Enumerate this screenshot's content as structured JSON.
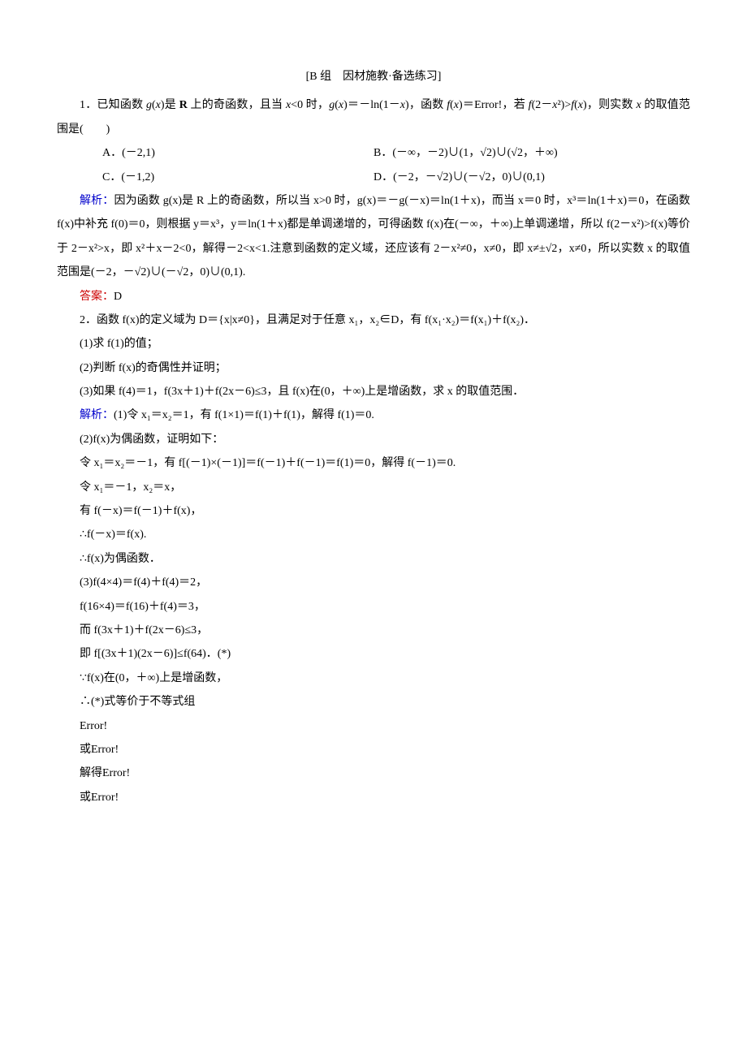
{
  "header": "[B 组　因材施教·备选练习]",
  "q1": {
    "stem_a": "1．已知函数 ",
    "stem_b": " 上的奇函数，且当 ",
    "stem_c": " 时，",
    "stem_d": "，函数 ",
    "stem_e": "Error!",
    "stem_f": "，若 ",
    "stem_g": "，则实数 ",
    "stem_h": " 的取值范围是",
    "stem_i": "(　　)",
    "optA": "A．(－2,1)",
    "optB": "B．(－∞，－2)∪(1，√2)∪(√2，＋∞)",
    "optC": "C．(－1,2)",
    "optD": "D．(－2，－√2)∪(－√2，0)∪(0,1)",
    "ans_label": "解析：",
    "ans1": "因为函数 g(x)是 R 上的奇函数，所以当 x>0 时，g(x)＝－g(－x)＝ln(1＋x)，而当 x＝0 时，x³＝ln(1＋x)＝0，在函数 f(x)中补充 f(0)＝0，则根据 y＝x³，y＝ln(1＋x)都是单调递增的，可得函数 f(x)在(－∞，＋∞)上单调递增，所以 f(2－x²)>f(x)等价于 2－x²>x，即 x²＋x－2<0，解得－2<x<1.注意到函数的定义域，还应该有 2－x²≠0，x≠0，即 x≠±√2，x≠0，所以实数 x 的取值范围是(－2，－√2)∪(－√2，0)∪(0,1).",
    "answer_label": "答案：",
    "answer": "D"
  },
  "q2": {
    "stem1": "2．函数 f(x)的定义域为 D＝{x|x≠0}，且满足对于任意 x₁，x₂∈D，有 f(x₁·x₂)＝f(x₁)＋f(x₂)．",
    "p1": "(1)求 f(1)的值；",
    "p2": "(2)判断 f(x)的奇偶性并证明；",
    "p3": "(3)如果 f(4)＝1，f(3x＋1)＋f(2x－6)≤3，且 f(x)在(0，＋∞)上是增函数，求 x 的取值范围．",
    "ans_label": "解析：",
    "s1": "(1)令 x₁＝x₂＝1，有 f(1×1)＝f(1)＋f(1)，解得 f(1)＝0.",
    "s2": "(2)f(x)为偶函数，证明如下：",
    "s3": "令 x₁＝x₂＝－1，有 f[(－1)×(－1)]＝f(－1)＋f(－1)＝f(1)＝0，解得 f(－1)＝0.",
    "s4": "令 x₁＝－1，x₂＝x，",
    "s5": "有 f(－x)＝f(－1)＋f(x)，",
    "s6": "∴f(－x)＝f(x).",
    "s7": "∴f(x)为偶函数．",
    "s8": "(3)f(4×4)＝f(4)＋f(4)＝2，",
    "s9": "f(16×4)＝f(16)＋f(4)＝3，",
    "s10": "而 f(3x＋1)＋f(2x－6)≤3，",
    "s11": "即 f[(3x＋1)(2x－6)]≤f(64)．(*)",
    "s12": "∵f(x)在(0，＋∞)上是增函数，",
    "s13": "∴(*)式等价于不等式组",
    "s14": "Error!",
    "s15": "或Error!",
    "s16": "解得Error!",
    "s17": "或Error!"
  }
}
